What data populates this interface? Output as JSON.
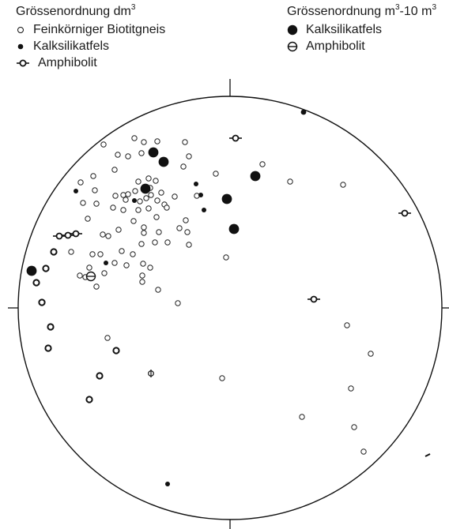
{
  "legend_small": {
    "title_prefix": "Grössenordnung dm",
    "title_sup": "3",
    "items": [
      {
        "symbol": "open-circle",
        "label": "Feinkörniger Biotitgneis"
      },
      {
        "symbol": "small-filled-circle",
        "label": "Kalksilikatfels"
      },
      {
        "symbol": "amphibolite-circle",
        "label": "Amphibolit"
      }
    ]
  },
  "legend_large": {
    "title_prefix": "Grössenordnung m",
    "title_sup1": "3",
    "title_mid": "-10 m",
    "title_sup2": "3",
    "items": [
      {
        "symbol": "large-filled-circle",
        "label": "Kalksilikatfels"
      },
      {
        "symbol": "barred-circle",
        "label": "Amphibolit"
      }
    ]
  },
  "colors": {
    "ink": "#111111",
    "paper": "#ffffff"
  }
}
